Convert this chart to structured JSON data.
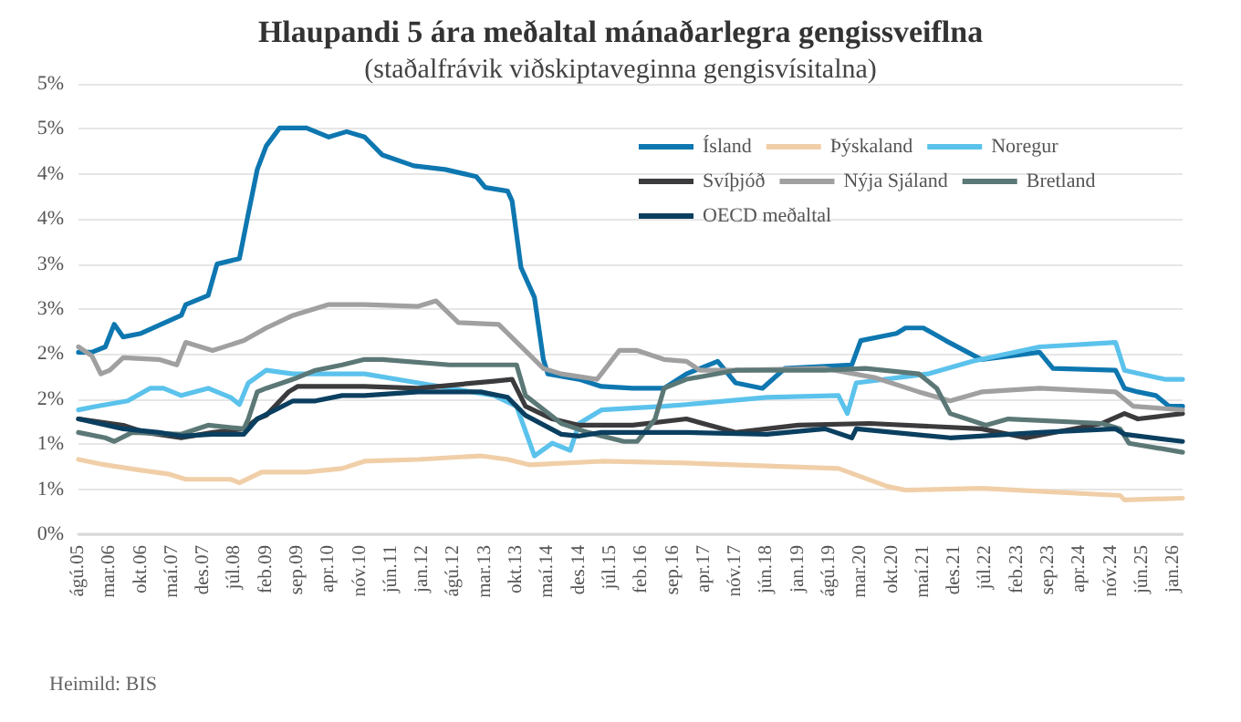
{
  "chart_data": {
    "type": "line",
    "title": "Hlaupandi 5 ára meðaltal mánaðarlegra gengissveiflna",
    "subtitle": "(staðalfrávik viðskiptaveginna gengisvísitalna)",
    "annotations": [
      "Heimild: BIS"
    ],
    "xlim": [
      "2005-08",
      "2026-03"
    ],
    "xticks": [
      {
        "value": "2005-08",
        "label": "ágú.05"
      },
      {
        "value": "2006-03",
        "label": "mar.06"
      },
      {
        "value": "2006-10",
        "label": "okt.06"
      },
      {
        "value": "2007-05",
        "label": "maí.07"
      },
      {
        "value": "2007-12",
        "label": "des.07"
      },
      {
        "value": "2008-07",
        "label": "júl.08"
      },
      {
        "value": "2009-02",
        "label": "feb.09"
      },
      {
        "value": "2009-09",
        "label": "sep.09"
      },
      {
        "value": "2010-04",
        "label": "apr.10"
      },
      {
        "value": "2010-11",
        "label": "nóv.10"
      },
      {
        "value": "2011-06",
        "label": "jún.11"
      },
      {
        "value": "2012-01",
        "label": "jan.12"
      },
      {
        "value": "2012-08",
        "label": "ágú.12"
      },
      {
        "value": "2013-03",
        "label": "mar.13"
      },
      {
        "value": "2013-10",
        "label": "okt.13"
      },
      {
        "value": "2014-05",
        "label": "maí.14"
      },
      {
        "value": "2014-12",
        "label": "des.14"
      },
      {
        "value": "2015-07",
        "label": "júl.15"
      },
      {
        "value": "2016-02",
        "label": "feb.16"
      },
      {
        "value": "2016-09",
        "label": "sep.16"
      },
      {
        "value": "2017-04",
        "label": "apr.17"
      },
      {
        "value": "2017-11",
        "label": "nóv.17"
      },
      {
        "value": "2018-06",
        "label": "jún.18"
      },
      {
        "value": "2019-01",
        "label": "jan.19"
      },
      {
        "value": "2019-08",
        "label": "ágú.19"
      },
      {
        "value": "2020-03",
        "label": "mar.20"
      },
      {
        "value": "2020-10",
        "label": "okt.20"
      },
      {
        "value": "2021-05",
        "label": "maí.21"
      },
      {
        "value": "2021-12",
        "label": "des.21"
      },
      {
        "value": "2022-07",
        "label": "júl.22"
      },
      {
        "value": "2023-02",
        "label": "feb.23"
      },
      {
        "value": "2023-09",
        "label": "sep.23"
      },
      {
        "value": "2024-04",
        "label": "apr.24"
      },
      {
        "value": "2024-11",
        "label": "nóv.24"
      },
      {
        "value": "2025-06",
        "label": "jún.25"
      },
      {
        "value": "2026-01",
        "label": "jan.26"
      }
    ],
    "ylim": [
      0,
      5
    ],
    "yticks": [
      {
        "value": 0,
        "label": "0%"
      },
      {
        "value": 0.5,
        "label": "1%"
      },
      {
        "value": 1,
        "label": "1%"
      },
      {
        "value": 1.5,
        "label": "2%"
      },
      {
        "value": 2,
        "label": "2%"
      },
      {
        "value": 2.5,
        "label": "3%"
      },
      {
        "value": 3,
        "label": "3%"
      },
      {
        "value": 3.5,
        "label": "4%"
      },
      {
        "value": 4,
        "label": "4%"
      },
      {
        "value": 4.5,
        "label": "5%"
      },
      {
        "value": 5,
        "label": "5%"
      }
    ],
    "grid": "y",
    "legend": "top right",
    "marker": "none",
    "line_style": "solid",
    "series": [
      {
        "name": "Ísland",
        "color": "#0e77b0",
        "x": [
          "2005-08",
          "2005-11",
          "2006-02",
          "2006-04",
          "2006-06",
          "2006-10",
          "2007-07",
          "2007-08",
          "2008-01",
          "2008-03",
          "2008-08",
          "2008-10",
          "2008-12",
          "2009-02",
          "2009-05",
          "2009-11",
          "2010-04",
          "2010-08",
          "2010-12",
          "2011-04",
          "2011-11",
          "2012-06",
          "2013-01",
          "2013-03",
          "2013-08",
          "2013-09",
          "2013-11",
          "2014-02",
          "2014-04",
          "2014-05",
          "2014-12",
          "2015-05",
          "2015-12",
          "2016-07",
          "2016-12",
          "2017-07",
          "2017-11",
          "2018-05",
          "2018-10",
          "2020-01",
          "2020-03",
          "2020-11",
          "2021-01",
          "2021-05",
          "2021-10",
          "2022-06",
          "2023-07",
          "2023-10",
          "2024-12",
          "2025-02",
          "2025-05",
          "2025-09",
          "2025-12",
          "2026-03"
        ],
        "values": [
          2.02,
          2.02,
          2.08,
          2.33,
          2.19,
          2.23,
          2.43,
          2.55,
          2.65,
          3.0,
          3.06,
          3.56,
          4.05,
          4.31,
          4.51,
          4.51,
          4.41,
          4.47,
          4.41,
          4.21,
          4.09,
          4.05,
          3.97,
          3.85,
          3.81,
          3.7,
          2.96,
          2.63,
          1.94,
          1.78,
          1.72,
          1.64,
          1.62,
          1.62,
          1.78,
          1.92,
          1.68,
          1.62,
          1.84,
          1.88,
          2.15,
          2.23,
          2.29,
          2.29,
          2.15,
          1.94,
          2.02,
          1.84,
          1.82,
          1.62,
          1.58,
          1.54,
          1.42,
          1.42
        ]
      },
      {
        "name": "Þýskaland",
        "color": "#f0cfa8",
        "x": [
          "2005-08",
          "2006-02",
          "2006-10",
          "2007-04",
          "2007-08",
          "2008-06",
          "2008-08",
          "2009-01",
          "2009-11",
          "2010-07",
          "2010-12",
          "2011-12",
          "2013-02",
          "2013-08",
          "2014-01",
          "2015-05",
          "2016-12",
          "2019-10",
          "2020-09",
          "2021-01",
          "2022-06",
          "2025-01",
          "2025-02",
          "2026-03"
        ],
        "values": [
          0.83,
          0.77,
          0.71,
          0.67,
          0.61,
          0.61,
          0.57,
          0.69,
          0.69,
          0.73,
          0.81,
          0.83,
          0.87,
          0.83,
          0.77,
          0.81,
          0.79,
          0.73,
          0.53,
          0.49,
          0.51,
          0.43,
          0.38,
          0.4
        ]
      },
      {
        "name": "Noregur",
        "color": "#5bc2ec",
        "x": [
          "2005-08",
          "2005-12",
          "2006-07",
          "2006-12",
          "2007-03",
          "2007-07",
          "2008-01",
          "2008-06",
          "2008-08",
          "2008-10",
          "2009-02",
          "2009-08",
          "2010-12",
          "2011-12",
          "2013-05",
          "2013-10",
          "2014-02",
          "2014-06",
          "2014-10",
          "2014-12",
          "2015-05",
          "2016-07",
          "2016-12",
          "2018-06",
          "2019-10",
          "2019-12",
          "2020-02",
          "2021-06",
          "2022-04",
          "2023-07",
          "2024-12",
          "2025-02",
          "2025-11",
          "2026-03"
        ],
        "values": [
          1.38,
          1.42,
          1.48,
          1.62,
          1.62,
          1.54,
          1.62,
          1.52,
          1.44,
          1.68,
          1.82,
          1.78,
          1.78,
          1.68,
          1.54,
          1.42,
          0.87,
          1.01,
          0.93,
          1.23,
          1.38,
          1.42,
          1.44,
          1.52,
          1.54,
          1.34,
          1.68,
          1.78,
          1.92,
          2.08,
          2.13,
          1.82,
          1.72,
          1.72
        ]
      },
      {
        "name": "Svíþjóð",
        "color": "#3b3a3c",
        "x": [
          "2005-08",
          "2006-06",
          "2006-11",
          "2007-07",
          "2008-02",
          "2008-09",
          "2008-12",
          "2009-02",
          "2009-07",
          "2009-09",
          "2010-05",
          "2010-12",
          "2011-12",
          "2013-05",
          "2013-09",
          "2013-12",
          "2014-06",
          "2014-12",
          "2015-12",
          "2016-12",
          "2017-11",
          "2019-01",
          "2020-05",
          "2022-06",
          "2023-04",
          "2024-09",
          "2025-02",
          "2025-05",
          "2026-03"
        ],
        "values": [
          1.28,
          1.21,
          1.13,
          1.07,
          1.13,
          1.17,
          1.28,
          1.32,
          1.58,
          1.64,
          1.64,
          1.64,
          1.62,
          1.7,
          1.72,
          1.42,
          1.28,
          1.21,
          1.21,
          1.28,
          1.13,
          1.21,
          1.23,
          1.17,
          1.07,
          1.23,
          1.34,
          1.28,
          1.34
        ]
      },
      {
        "name": "Nýja Sjáland",
        "color": "#a0a0a0",
        "x": [
          "2005-08",
          "2005-11",
          "2006-01",
          "2006-03",
          "2006-06",
          "2007-02",
          "2007-06",
          "2007-08",
          "2008-02",
          "2008-09",
          "2009-02",
          "2009-08",
          "2010-04",
          "2010-12",
          "2011-12",
          "2012-04",
          "2012-09",
          "2013-06",
          "2014-04",
          "2014-08",
          "2015-04",
          "2015-09",
          "2016-01",
          "2016-07",
          "2016-12",
          "2017-03",
          "2017-11",
          "2019-07",
          "2020-06",
          "2021-04",
          "2021-11",
          "2022-06",
          "2023-07",
          "2024-12",
          "2025-04",
          "2026-03"
        ],
        "values": [
          2.08,
          1.98,
          1.78,
          1.82,
          1.96,
          1.94,
          1.88,
          2.13,
          2.04,
          2.15,
          2.29,
          2.43,
          2.55,
          2.55,
          2.53,
          2.59,
          2.35,
          2.33,
          1.84,
          1.78,
          1.72,
          2.04,
          2.04,
          1.94,
          1.92,
          1.82,
          1.82,
          1.84,
          1.74,
          1.58,
          1.48,
          1.58,
          1.62,
          1.58,
          1.42,
          1.38
        ]
      },
      {
        "name": "Bretland",
        "color": "#5b7876",
        "x": [
          "2005-08",
          "2006-02",
          "2006-04",
          "2006-08",
          "2007-07",
          "2008-01",
          "2008-09",
          "2008-10",
          "2008-12",
          "2009-02",
          "2009-08",
          "2010-01",
          "2010-07",
          "2010-12",
          "2011-04",
          "2012-07",
          "2013-10",
          "2013-12",
          "2014-08",
          "2015-02",
          "2015-10",
          "2016-01",
          "2016-05",
          "2016-07",
          "2016-12",
          "2017-11",
          "2019-07",
          "2020-04",
          "2021-04",
          "2021-08",
          "2021-11",
          "2022-07",
          "2022-12",
          "2024-09",
          "2025-01",
          "2025-03",
          "2026-03"
        ],
        "values": [
          1.13,
          1.07,
          1.03,
          1.13,
          1.11,
          1.21,
          1.17,
          1.28,
          1.58,
          1.62,
          1.72,
          1.82,
          1.88,
          1.94,
          1.94,
          1.88,
          1.88,
          1.54,
          1.23,
          1.13,
          1.03,
          1.03,
          1.28,
          1.62,
          1.72,
          1.82,
          1.82,
          1.84,
          1.78,
          1.62,
          1.34,
          1.21,
          1.28,
          1.23,
          1.17,
          1.01,
          0.91
        ]
      },
      {
        "name": "OECD meðaltal",
        "color": "#0b3f60",
        "x": [
          "2005-08",
          "2006-06",
          "2007-02",
          "2007-07",
          "2008-02",
          "2008-09",
          "2008-12",
          "2009-04",
          "2009-08",
          "2010-01",
          "2010-07",
          "2010-12",
          "2011-12",
          "2013-02",
          "2013-08",
          "2013-12",
          "2014-08",
          "2014-12",
          "2015-05",
          "2016-12",
          "2018-06",
          "2019-07",
          "2020-01",
          "2020-02",
          "2021-11",
          "2023-07",
          "2024-12",
          "2025-02",
          "2026-03"
        ],
        "values": [
          1.28,
          1.17,
          1.13,
          1.09,
          1.11,
          1.11,
          1.28,
          1.38,
          1.48,
          1.48,
          1.54,
          1.54,
          1.58,
          1.58,
          1.52,
          1.32,
          1.11,
          1.09,
          1.13,
          1.13,
          1.11,
          1.17,
          1.07,
          1.17,
          1.07,
          1.13,
          1.17,
          1.11,
          1.03
        ]
      }
    ]
  }
}
